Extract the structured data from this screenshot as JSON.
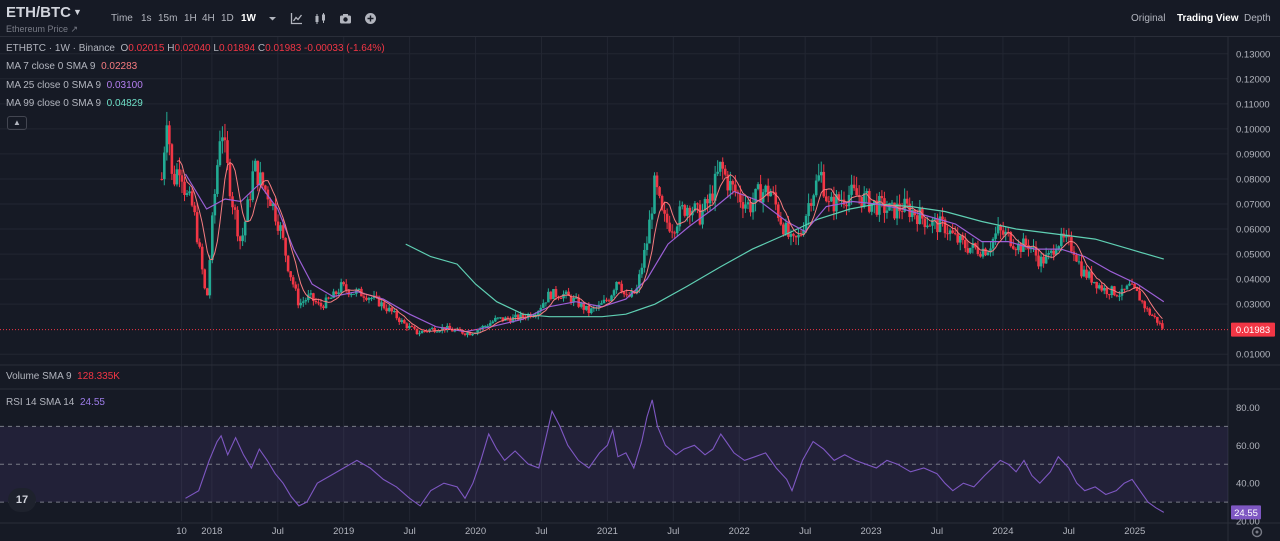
{
  "topbar": {
    "pair": "ETH/BTC",
    "pair_sub": "Ethereum Price",
    "timeframes": [
      "Time",
      "1s",
      "15m",
      "1H",
      "4H",
      "1D",
      "1W"
    ],
    "active_timeframe": "1W",
    "tool_icons": [
      "chevron-down-icon",
      "indicators-icon",
      "candles-icon",
      "camera-icon",
      "plus-circle-icon"
    ],
    "views": [
      "Original",
      "Trading View",
      "Depth"
    ],
    "active_view": "Trading View"
  },
  "legend": {
    "symbol": "ETHBTC · 1W · Binance",
    "open_label": "O",
    "open": "0.02015",
    "high_label": "H",
    "high": "0.02040",
    "low_label": "L",
    "low": "0.01894",
    "close_label": "C",
    "close": "0.01983",
    "change": "-0.00033 (-1.64%)",
    "ma7_label": "MA 7 close 0 SMA 9",
    "ma7": "0.02283",
    "ma25_label": "MA 25 close 0 SMA 9",
    "ma25": "0.03100",
    "ma99_label": "MA 99 close 0 SMA 9",
    "ma99": "0.04829",
    "volume_label": "Volume SMA 9",
    "volume": "128.335K",
    "rsi_label": "RSI 14 SMA 14",
    "rsi": "24.55"
  },
  "colors": {
    "background": "#161a25",
    "up": "#22ab94",
    "down": "#f23645",
    "ma7": "#f77c80",
    "ma25": "#9c5fd6",
    "ma99": "#5fcfb3",
    "rsi": "#7e57c2",
    "grid": "#222632"
  },
  "chart_data": {
    "type": "candlestick",
    "symbol": "ETHBTC",
    "interval": "1W",
    "price_axis": {
      "ticks": [
        "0.13000",
        "0.12000",
        "0.11000",
        "0.10000",
        "0.09000",
        "0.08000",
        "0.07000",
        "0.06000",
        "0.05000",
        "0.04000",
        "0.03000",
        "0.01983",
        "0.01000"
      ],
      "range": [
        0.0065,
        0.1335
      ],
      "last_price": "0.01983"
    },
    "time_axis": [
      "10",
      "2018",
      "Jul",
      "2019",
      "Jul",
      "2020",
      "Jul",
      "2021",
      "Jul",
      "2022",
      "Jul",
      "2023",
      "Jul",
      "2024",
      "Jul",
      "2025"
    ],
    "price_path": [
      [
        2017.62,
        0.08
      ],
      [
        2017.66,
        0.108
      ],
      [
        2017.7,
        0.078
      ],
      [
        2017.76,
        0.087
      ],
      [
        2017.8,
        0.074
      ],
      [
        2017.86,
        0.068
      ],
      [
        2017.92,
        0.046
      ],
      [
        2017.96,
        0.03
      ],
      [
        2018.0,
        0.06
      ],
      [
        2018.04,
        0.085
      ],
      [
        2018.07,
        0.104
      ],
      [
        2018.1,
        0.09
      ],
      [
        2018.16,
        0.07
      ],
      [
        2018.22,
        0.054
      ],
      [
        2018.28,
        0.071
      ],
      [
        2018.32,
        0.085
      ],
      [
        2018.38,
        0.078
      ],
      [
        2018.44,
        0.073
      ],
      [
        2018.52,
        0.06
      ],
      [
        2018.58,
        0.045
      ],
      [
        2018.66,
        0.03
      ],
      [
        2018.74,
        0.033
      ],
      [
        2018.82,
        0.029
      ],
      [
        2018.92,
        0.033
      ],
      [
        2018.98,
        0.037
      ],
      [
        2019.06,
        0.035
      ],
      [
        2019.16,
        0.034
      ],
      [
        2019.26,
        0.031
      ],
      [
        2019.36,
        0.027
      ],
      [
        2019.46,
        0.022
      ],
      [
        2019.56,
        0.0185
      ],
      [
        2019.66,
        0.02
      ],
      [
        2019.76,
        0.0205
      ],
      [
        2019.86,
        0.019
      ],
      [
        2019.96,
        0.0185
      ],
      [
        2020.06,
        0.021
      ],
      [
        2020.16,
        0.024
      ],
      [
        2020.26,
        0.024
      ],
      [
        2020.36,
        0.025
      ],
      [
        2020.46,
        0.027
      ],
      [
        2020.56,
        0.034
      ],
      [
        2020.66,
        0.034
      ],
      [
        2020.76,
        0.031
      ],
      [
        2020.86,
        0.027
      ],
      [
        2020.94,
        0.029
      ],
      [
        2021.02,
        0.033
      ],
      [
        2021.08,
        0.041
      ],
      [
        2021.14,
        0.032
      ],
      [
        2021.22,
        0.035
      ],
      [
        2021.3,
        0.055
      ],
      [
        2021.36,
        0.078
      ],
      [
        2021.42,
        0.064
      ],
      [
        2021.5,
        0.061
      ],
      [
        2021.56,
        0.067
      ],
      [
        2021.62,
        0.07
      ],
      [
        2021.7,
        0.065
      ],
      [
        2021.78,
        0.072
      ],
      [
        2021.86,
        0.085
      ],
      [
        2021.92,
        0.078
      ],
      [
        2022.0,
        0.073
      ],
      [
        2022.08,
        0.069
      ],
      [
        2022.16,
        0.075
      ],
      [
        2022.24,
        0.075
      ],
      [
        2022.32,
        0.063
      ],
      [
        2022.4,
        0.054
      ],
      [
        2022.46,
        0.057
      ],
      [
        2022.54,
        0.073
      ],
      [
        2022.62,
        0.082
      ],
      [
        2022.68,
        0.069
      ],
      [
        2022.76,
        0.072
      ],
      [
        2022.84,
        0.074
      ],
      [
        2022.92,
        0.073
      ],
      [
        2023.0,
        0.07
      ],
      [
        2023.08,
        0.069
      ],
      [
        2023.16,
        0.067
      ],
      [
        2023.24,
        0.069
      ],
      [
        2023.32,
        0.067
      ],
      [
        2023.4,
        0.064
      ],
      [
        2023.48,
        0.062
      ],
      [
        2023.56,
        0.061
      ],
      [
        2023.64,
        0.056
      ],
      [
        2023.72,
        0.053
      ],
      [
        2023.8,
        0.052
      ],
      [
        2023.88,
        0.052
      ],
      [
        2023.96,
        0.059
      ],
      [
        2024.04,
        0.057
      ],
      [
        2024.12,
        0.053
      ],
      [
        2024.2,
        0.054
      ],
      [
        2024.28,
        0.047
      ],
      [
        2024.36,
        0.049
      ],
      [
        2024.4,
        0.055
      ],
      [
        2024.48,
        0.055
      ],
      [
        2024.54,
        0.052
      ],
      [
        2024.6,
        0.043
      ],
      [
        2024.68,
        0.04
      ],
      [
        2024.76,
        0.036
      ],
      [
        2024.84,
        0.035
      ],
      [
        2024.9,
        0.034
      ],
      [
        2024.96,
        0.037
      ],
      [
        2025.02,
        0.034
      ],
      [
        2025.1,
        0.027
      ],
      [
        2025.16,
        0.024
      ],
      [
        2025.22,
        0.0198
      ]
    ],
    "ma25_path": [
      [
        2017.8,
        0.082
      ],
      [
        2017.96,
        0.068
      ],
      [
        2018.1,
        0.072
      ],
      [
        2018.22,
        0.071
      ],
      [
        2018.36,
        0.078
      ],
      [
        2018.5,
        0.068
      ],
      [
        2018.62,
        0.052
      ],
      [
        2018.76,
        0.038
      ],
      [
        2018.92,
        0.033
      ],
      [
        2019.1,
        0.035
      ],
      [
        2019.3,
        0.032
      ],
      [
        2019.5,
        0.026
      ],
      [
        2019.7,
        0.021
      ],
      [
        2019.92,
        0.019
      ],
      [
        2020.12,
        0.021
      ],
      [
        2020.36,
        0.024
      ],
      [
        2020.56,
        0.029
      ],
      [
        2020.76,
        0.031
      ],
      [
        2020.96,
        0.029
      ],
      [
        2021.14,
        0.032
      ],
      [
        2021.3,
        0.04
      ],
      [
        2021.46,
        0.054
      ],
      [
        2021.62,
        0.061
      ],
      [
        2021.8,
        0.068
      ],
      [
        2021.96,
        0.075
      ],
      [
        2022.16,
        0.071
      ],
      [
        2022.36,
        0.063
      ],
      [
        2022.5,
        0.059
      ],
      [
        2022.66,
        0.069
      ],
      [
        2022.86,
        0.071
      ],
      [
        2023.04,
        0.07
      ],
      [
        2023.24,
        0.068
      ],
      [
        2023.44,
        0.065
      ],
      [
        2023.64,
        0.062
      ],
      [
        2023.84,
        0.055
      ],
      [
        2024.04,
        0.055
      ],
      [
        2024.24,
        0.052
      ],
      [
        2024.44,
        0.052
      ],
      [
        2024.62,
        0.049
      ],
      [
        2024.82,
        0.043
      ],
      [
        2025.02,
        0.038
      ],
      [
        2025.22,
        0.031
      ]
    ],
    "ma99_path": [
      [
        2019.47,
        0.054
      ],
      [
        2019.66,
        0.049
      ],
      [
        2019.86,
        0.046
      ],
      [
        2020.0,
        0.038
      ],
      [
        2020.16,
        0.031
      ],
      [
        2020.36,
        0.026
      ],
      [
        2020.56,
        0.025
      ],
      [
        2020.76,
        0.025
      ],
      [
        2020.96,
        0.025
      ],
      [
        2021.14,
        0.026
      ],
      [
        2021.36,
        0.03
      ],
      [
        2021.6,
        0.037
      ],
      [
        2021.86,
        0.045
      ],
      [
        2022.1,
        0.052
      ],
      [
        2022.36,
        0.058
      ],
      [
        2022.6,
        0.064
      ],
      [
        2022.84,
        0.068
      ],
      [
        2023.04,
        0.07
      ],
      [
        2023.3,
        0.069
      ],
      [
        2023.56,
        0.067
      ],
      [
        2023.84,
        0.063
      ],
      [
        2024.1,
        0.06
      ],
      [
        2024.4,
        0.058
      ],
      [
        2024.7,
        0.056
      ],
      [
        2024.96,
        0.052
      ],
      [
        2025.22,
        0.048
      ]
    ],
    "rsi": {
      "ticks": [
        "80.00",
        "60.00",
        "40.00",
        "20.00"
      ],
      "range": [
        20,
        85
      ],
      "band_upper": 70,
      "band_mid": 50,
      "band_lower": 30,
      "last": "24.55",
      "values": [
        [
          2017.8,
          32
        ],
        [
          2017.9,
          36
        ],
        [
          2017.98,
          52
        ],
        [
          2018.04,
          62
        ],
        [
          2018.07,
          65
        ],
        [
          2018.12,
          55
        ],
        [
          2018.18,
          64
        ],
        [
          2018.24,
          55
        ],
        [
          2018.3,
          48
        ],
        [
          2018.36,
          58
        ],
        [
          2018.42,
          52
        ],
        [
          2018.48,
          45
        ],
        [
          2018.54,
          40
        ],
        [
          2018.6,
          33
        ],
        [
          2018.66,
          28
        ],
        [
          2018.72,
          30
        ],
        [
          2018.8,
          40
        ],
        [
          2018.9,
          44
        ],
        [
          2019.0,
          48
        ],
        [
          2019.1,
          52
        ],
        [
          2019.2,
          48
        ],
        [
          2019.3,
          42
        ],
        [
          2019.4,
          38
        ],
        [
          2019.5,
          32
        ],
        [
          2019.58,
          28
        ],
        [
          2019.66,
          36
        ],
        [
          2019.76,
          40
        ],
        [
          2019.86,
          38
        ],
        [
          2019.92,
          32
        ],
        [
          2019.98,
          40
        ],
        [
          2020.04,
          52
        ],
        [
          2020.1,
          66
        ],
        [
          2020.16,
          58
        ],
        [
          2020.22,
          52
        ],
        [
          2020.3,
          57
        ],
        [
          2020.4,
          50
        ],
        [
          2020.48,
          48
        ],
        [
          2020.54,
          66
        ],
        [
          2020.58,
          78
        ],
        [
          2020.64,
          70
        ],
        [
          2020.7,
          60
        ],
        [
          2020.78,
          52
        ],
        [
          2020.86,
          48
        ],
        [
          2020.94,
          56
        ],
        [
          2021.0,
          60
        ],
        [
          2021.04,
          68
        ],
        [
          2021.08,
          54
        ],
        [
          2021.14,
          56
        ],
        [
          2021.2,
          48
        ],
        [
          2021.26,
          62
        ],
        [
          2021.3,
          75
        ],
        [
          2021.34,
          84
        ],
        [
          2021.38,
          70
        ],
        [
          2021.44,
          60
        ],
        [
          2021.52,
          55
        ],
        [
          2021.58,
          58
        ],
        [
          2021.66,
          60
        ],
        [
          2021.74,
          55
        ],
        [
          2021.8,
          58
        ],
        [
          2021.86,
          66
        ],
        [
          2021.9,
          62
        ],
        [
          2021.96,
          56
        ],
        [
          2022.04,
          52
        ],
        [
          2022.12,
          54
        ],
        [
          2022.2,
          56
        ],
        [
          2022.28,
          48
        ],
        [
          2022.36,
          42
        ],
        [
          2022.4,
          36
        ],
        [
          2022.48,
          52
        ],
        [
          2022.56,
          62
        ],
        [
          2022.64,
          58
        ],
        [
          2022.72,
          52
        ],
        [
          2022.8,
          55
        ],
        [
          2022.88,
          52
        ],
        [
          2022.96,
          50
        ],
        [
          2023.04,
          48
        ],
        [
          2023.12,
          52
        ],
        [
          2023.2,
          50
        ],
        [
          2023.3,
          46
        ],
        [
          2023.4,
          48
        ],
        [
          2023.5,
          45
        ],
        [
          2023.56,
          40
        ],
        [
          2023.62,
          36
        ],
        [
          2023.7,
          40
        ],
        [
          2023.78,
          38
        ],
        [
          2023.86,
          44
        ],
        [
          2023.92,
          48
        ],
        [
          2023.98,
          52
        ],
        [
          2024.04,
          50
        ],
        [
          2024.1,
          46
        ],
        [
          2024.16,
          52
        ],
        [
          2024.22,
          44
        ],
        [
          2024.28,
          40
        ],
        [
          2024.36,
          46
        ],
        [
          2024.42,
          54
        ],
        [
          2024.5,
          48
        ],
        [
          2024.56,
          40
        ],
        [
          2024.62,
          36
        ],
        [
          2024.7,
          38
        ],
        [
          2024.78,
          34
        ],
        [
          2024.86,
          36
        ],
        [
          2024.92,
          40
        ],
        [
          2024.98,
          42
        ],
        [
          2025.04,
          36
        ],
        [
          2025.1,
          30
        ],
        [
          2025.16,
          27
        ],
        [
          2025.22,
          24.55
        ]
      ]
    }
  }
}
